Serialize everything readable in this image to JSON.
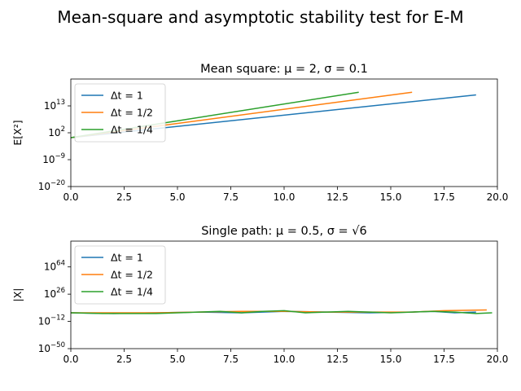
{
  "suptitle": "Mean-square and asymptotic stability test for E-M",
  "colors": [
    "#1f77b4",
    "#ff7f0e",
    "#2ca02c"
  ],
  "chart_data": [
    {
      "type": "line",
      "title": "Mean square: μ = 2, σ = 0.1",
      "xlabel": "",
      "ylabel": "E[X²]",
      "yscale": "log",
      "xlim": [
        0,
        20
      ],
      "ylim_exponent": [
        -20,
        24
      ],
      "x_ticks": [
        "0.0",
        "2.5",
        "5.0",
        "7.5",
        "10.0",
        "12.5",
        "15.0",
        "17.5",
        "20.0"
      ],
      "y_ticks": [
        {
          "base": "10",
          "exp": "−20",
          "e": -20
        },
        {
          "base": "10",
          "exp": "−9",
          "e": -9
        },
        {
          "base": "10",
          "exp": "2",
          "e": 2
        },
        {
          "base": "10",
          "exp": "13",
          "e": 13
        }
      ],
      "legend": {
        "placement": "upper left"
      },
      "series": [
        {
          "name": "Δt = 1",
          "x": [
            0,
            19
          ],
          "log10_y": [
            0,
            17.5
          ]
        },
        {
          "name": "Δt = 1/2",
          "x": [
            0,
            16
          ],
          "log10_y": [
            0,
            18.6
          ]
        },
        {
          "name": "Δt = 1/4",
          "x": [
            0,
            13.5
          ],
          "log10_y": [
            0,
            18.6
          ]
        }
      ]
    },
    {
      "type": "line",
      "title": "Single path: μ = 0.5, σ = √6",
      "xlabel": "",
      "ylabel": "|X|",
      "yscale": "log",
      "xlim": [
        0,
        20
      ],
      "ylim_exponent": [
        -50,
        100
      ],
      "x_ticks": [
        "0.0",
        "2.5",
        "5.0",
        "7.5",
        "10.0",
        "12.5",
        "15.0",
        "17.5",
        "20.0"
      ],
      "y_ticks": [
        {
          "base": "10",
          "exp": "−50",
          "e": -50
        },
        {
          "base": "10",
          "exp": "−12",
          "e": -12
        },
        {
          "base": "10",
          "exp": "26",
          "e": 26
        },
        {
          "base": "10",
          "exp": "64",
          "e": 64
        }
      ],
      "legend": {
        "placement": "upper left"
      },
      "series": [
        {
          "name": "Δt = 1",
          "x": [
            0,
            2,
            4,
            6,
            8,
            10,
            12,
            14,
            16,
            17,
            18,
            19
          ],
          "log10_y": [
            0,
            -1,
            0,
            1,
            0,
            2,
            1,
            0,
            1,
            2,
            0,
            1
          ]
        },
        {
          "name": "Δt = 1/2",
          "x": [
            0,
            2,
            4,
            6,
            8,
            10,
            12,
            14,
            16,
            17.5,
            19.5
          ],
          "log10_y": [
            0,
            0,
            0,
            1,
            2,
            2,
            1,
            1,
            1,
            3,
            4
          ]
        },
        {
          "name": "Δt = 1/4",
          "x": [
            0,
            1.5,
            3,
            4,
            5,
            6,
            7,
            8,
            9,
            10,
            11,
            12,
            13,
            14,
            15,
            16,
            17,
            18,
            19,
            19.75
          ],
          "log10_y": [
            0,
            -1,
            -1,
            -1,
            0,
            1,
            2,
            0,
            2,
            3,
            0,
            1,
            2,
            1,
            0,
            1,
            2,
            1,
            -1,
            0
          ]
        }
      ]
    }
  ]
}
